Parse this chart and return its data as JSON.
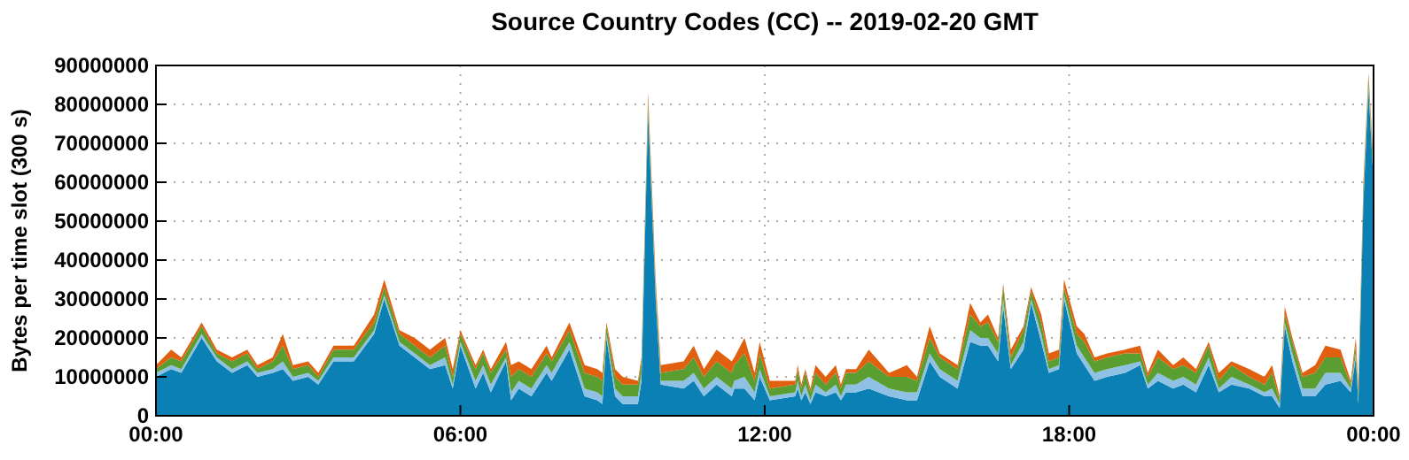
{
  "chart_data": {
    "type": "area",
    "stacked": true,
    "title": "Source Country Codes (CC) -- 2019-02-20 GMT",
    "ylabel": "Bytes per time slot (300 s)",
    "x": [
      0,
      0.3,
      0.5,
      0.9,
      1.2,
      1.5,
      1.8,
      2.0,
      2.3,
      2.5,
      2.7,
      3.0,
      3.2,
      3.5,
      3.9,
      4.3,
      4.5,
      4.8,
      5.1,
      5.4,
      5.7,
      5.85,
      6.0,
      6.3,
      6.45,
      6.6,
      6.9,
      7.0,
      7.15,
      7.4,
      7.7,
      7.8,
      8.15,
      8.45,
      8.7,
      8.8,
      8.88,
      9.05,
      9.2,
      9.5,
      9.57,
      9.7,
      9.85,
      9.95,
      10.4,
      10.6,
      10.8,
      11.05,
      11.35,
      11.4,
      11.6,
      11.8,
      11.9,
      12.1,
      12.6,
      12.65,
      12.72,
      12.8,
      12.9,
      13.0,
      13.2,
      13.4,
      13.5,
      13.6,
      13.8,
      14.05,
      14.45,
      14.8,
      15.0,
      15.25,
      15.45,
      15.8,
      16.05,
      16.25,
      16.4,
      16.6,
      16.7,
      16.85,
      17.1,
      17.25,
      17.45,
      17.6,
      17.8,
      17.9,
      18.15,
      18.3,
      18.5,
      18.75,
      19.1,
      19.4,
      19.55,
      19.75,
      20.05,
      20.25,
      20.5,
      20.75,
      20.95,
      21.2,
      21.55,
      21.85,
      22.0,
      22.15,
      22.25,
      22.4,
      22.6,
      22.85,
      23.05,
      23.35,
      23.55,
      23.65,
      23.7,
      23.8,
      23.9,
      24
    ],
    "series": [
      {
        "color": "#0a80b4",
        "values": [
          10000000.0,
          12000000.0,
          11000000.0,
          20000000.0,
          14000000.0,
          11000000.0,
          13000000.0,
          10000000.0,
          11000000.0,
          12000000.0,
          9000000.0,
          10000000.0,
          8000000.0,
          14000000.0,
          14000000.0,
          21000000.0,
          30000000.0,
          18000000.0,
          15000000.0,
          12000000.0,
          13000000.0,
          7000000.0,
          18000000.0,
          7000000.0,
          11000000.0,
          6000000.0,
          14000000.0,
          4000000.0,
          7000000.0,
          5000000.0,
          11000000.0,
          9000000.0,
          17000000.0,
          5000000.0,
          4000000.0,
          3000000.0,
          20000000.0,
          5000000.0,
          3000000.0,
          3000000.0,
          9000000.0,
          78000000.0,
          30000000.0,
          8000000.0,
          7000000.0,
          9000000.0,
          5000000.0,
          8000000.0,
          5000000.0,
          7000000.0,
          7000000.0,
          4000000.0,
          10000000.0,
          4000000.0,
          5000000.0,
          7000000.0,
          4000000.0,
          6000000.0,
          3000000.0,
          6000000.0,
          5000000.0,
          6000000.0,
          4000000.0,
          6000000.0,
          6000000.0,
          7000000.0,
          5000000.0,
          4000000.0,
          4000000.0,
          14000000.0,
          10000000.0,
          7000000.0,
          19000000.0,
          18000000.0,
          18000000.0,
          14000000.0,
          28000000.0,
          12000000.0,
          17000000.0,
          29000000.0,
          19000000.0,
          11000000.0,
          12000000.0,
          30000000.0,
          16000000.0,
          13000000.0,
          9000000.0,
          10000000.0,
          11000000.0,
          13000000.0,
          7000000.0,
          9000000.0,
          7000000.0,
          8000000.0,
          6000000.0,
          13000000.0,
          6000000.0,
          8000000.0,
          7000000.0,
          5000000.0,
          5000000.0,
          2000000.0,
          23000000.0,
          14000000.0,
          5000000.0,
          5000000.0,
          8000000.0,
          9000000.0,
          6000000.0,
          15000000.0,
          3000000.0,
          55000000.0,
          84000000.0,
          60000000.0
        ]
      },
      {
        "color": "#8ec1e3",
        "values": [
          1000000.0,
          1000000.0,
          1000000.0,
          1000000.0,
          1000000.0,
          1000000.0,
          1000000.0,
          1000000.0,
          1000000.0,
          2000000.0,
          1000000.0,
          1000000.0,
          1000000.0,
          1000000.0,
          1000000.0,
          1000000.0,
          1000000.0,
          1000000.0,
          1000000.0,
          1000000.0,
          2000000.0,
          1000000.0,
          1000000.0,
          2000000.0,
          2000000.0,
          2000000.0,
          1000000.0,
          2000000.0,
          2000000.0,
          2000000.0,
          2000000.0,
          2000000.0,
          2000000.0,
          2000000.0,
          2000000.0,
          2000000.0,
          1000000.0,
          2000000.0,
          2000000.0,
          2000000.0,
          2000000.0,
          1000000.0,
          1000000.0,
          1000000.0,
          2000000.0,
          2000000.0,
          2000000.0,
          2000000.0,
          2000000.0,
          2000000.0,
          3000000.0,
          2000000.0,
          2000000.0,
          1000000.0,
          1000000.0,
          2000000.0,
          1000000.0,
          2000000.0,
          1000000.0,
          2000000.0,
          1000000.0,
          2000000.0,
          1000000.0,
          2000000.0,
          2000000.0,
          3000000.0,
          2000000.0,
          2000000.0,
          2000000.0,
          2000000.0,
          2000000.0,
          2000000.0,
          3000000.0,
          2000000.0,
          2000000.0,
          2000000.0,
          2000000.0,
          1000000.0,
          2000000.0,
          1000000.0,
          2000000.0,
          1000000.0,
          1000000.0,
          1000000.0,
          2000000.0,
          2000000.0,
          2000000.0,
          2000000.0,
          2000000.0,
          1000000.0,
          1000000.0,
          2000000.0,
          2000000.0,
          2000000.0,
          2000000.0,
          2000000.0,
          1000000.0,
          2000000.0,
          1000000.0,
          1000000.0,
          2000000.0,
          1000000.0,
          1000000.0,
          2000000.0,
          2000000.0,
          2000000.0,
          3000000.0,
          2000000.0,
          1000000.0,
          1000000.0,
          1000000.0,
          1000000.0,
          1000000.0,
          1000000.0
        ]
      },
      {
        "color": "#5a9e32",
        "values": [
          1000000.0,
          2000000.0,
          2000000.0,
          2000000.0,
          1000000.0,
          2000000.0,
          2000000.0,
          1000000.0,
          2000000.0,
          4000000.0,
          2000000.0,
          2000000.0,
          1000000.0,
          2000000.0,
          2000000.0,
          2000000.0,
          2000000.0,
          2000000.0,
          2000000.0,
          2000000.0,
          3000000.0,
          2000000.0,
          2000000.0,
          3000000.0,
          3000000.0,
          3000000.0,
          2000000.0,
          4000000.0,
          3000000.0,
          3000000.0,
          3000000.0,
          3000000.0,
          3000000.0,
          4000000.0,
          4000000.0,
          4000000.0,
          2000000.0,
          3000000.0,
          3000000.0,
          3000000.0,
          3000000.0,
          2000000.0,
          2000000.0,
          2000000.0,
          3000000.0,
          4000000.0,
          3000000.0,
          4000000.0,
          4000000.0,
          4000000.0,
          6000000.0,
          3000000.0,
          4000000.0,
          2000000.0,
          2000000.0,
          3000000.0,
          2000000.0,
          3000000.0,
          2000000.0,
          3000000.0,
          2000000.0,
          3000000.0,
          2000000.0,
          3000000.0,
          3000000.0,
          4000000.0,
          3000000.0,
          4000000.0,
          3000000.0,
          4000000.0,
          3000000.0,
          3000000.0,
          4000000.0,
          3000000.0,
          4000000.0,
          3000000.0,
          3000000.0,
          2000000.0,
          3000000.0,
          2000000.0,
          3000000.0,
          2000000.0,
          2000000.0,
          2000000.0,
          3000000.0,
          4000000.0,
          3000000.0,
          3000000.0,
          3000000.0,
          2000000.0,
          2000000.0,
          4000000.0,
          3000000.0,
          3000000.0,
          3000000.0,
          3000000.0,
          2000000.0,
          3000000.0,
          2000000.0,
          2000000.0,
          4000000.0,
          1000000.0,
          2000000.0,
          3000000.0,
          3000000.0,
          4000000.0,
          4000000.0,
          4000000.0,
          1000000.0,
          2000000.0,
          2000000.0,
          2000000.0,
          2000000.0,
          2000000.0
        ]
      },
      {
        "color": "#e0600f",
        "values": [
          1000000.0,
          2000000.0,
          1000000.0,
          1000000.0,
          1000000.0,
          1000000.0,
          1000000.0,
          1000000.0,
          1000000.0,
          3000000.0,
          1000000.0,
          1000000.0,
          1000000.0,
          1000000.0,
          1000000.0,
          2000000.0,
          2000000.0,
          1000000.0,
          2000000.0,
          2000000.0,
          2000000.0,
          2000000.0,
          1000000.0,
          1000000.0,
          1000000.0,
          1000000.0,
          2000000.0,
          3000000.0,
          2000000.0,
          2000000.0,
          2000000.0,
          1000000.0,
          2000000.0,
          2000000.0,
          2000000.0,
          2000000.0,
          1000000.0,
          2000000.0,
          2000000.0,
          1000000.0,
          1000000.0,
          2000000.0,
          2000000.0,
          2000000.0,
          2000000.0,
          3000000.0,
          2000000.0,
          3000000.0,
          3000000.0,
          2000000.0,
          4000000.0,
          2000000.0,
          3000000.0,
          2000000.0,
          1000000.0,
          1000000.0,
          1000000.0,
          1000000.0,
          1000000.0,
          2000000.0,
          2000000.0,
          2000000.0,
          1000000.0,
          1000000.0,
          1000000.0,
          3000000.0,
          1000000.0,
          3000000.0,
          1000000.0,
          3000000.0,
          1000000.0,
          1000000.0,
          3000000.0,
          1000000.0,
          2000000.0,
          1000000.0,
          1000000.0,
          2000000.0,
          1000000.0,
          1000000.0,
          2000000.0,
          2000000.0,
          2000000.0,
          2000000.0,
          2000000.0,
          2000000.0,
          1000000.0,
          1000000.0,
          1000000.0,
          2000000.0,
          1000000.0,
          2000000.0,
          1000000.0,
          2000000.0,
          1000000.0,
          1000000.0,
          2000000.0,
          1000000.0,
          2000000.0,
          2000000.0,
          2000000.0,
          1000000.0,
          2000000.0,
          1000000.0,
          1000000.0,
          2000000.0,
          3000000.0,
          2000000.0,
          1000000.0,
          2000000.0,
          2000000.0,
          2000000.0,
          1000000.0,
          2000000.0
        ]
      }
    ],
    "xlim": [
      0,
      24
    ],
    "xticks": [
      {
        "value": 0,
        "label": "00:00"
      },
      {
        "value": 6,
        "label": "06:00"
      },
      {
        "value": 12,
        "label": "12:00"
      },
      {
        "value": 18,
        "label": "18:00"
      },
      {
        "value": 24,
        "label": "00:00"
      }
    ],
    "ylim": [
      0,
      90000000
    ],
    "yticks": [
      0,
      10000000,
      20000000,
      30000000,
      40000000,
      50000000,
      60000000,
      70000000,
      80000000,
      90000000
    ],
    "grid": true
  }
}
